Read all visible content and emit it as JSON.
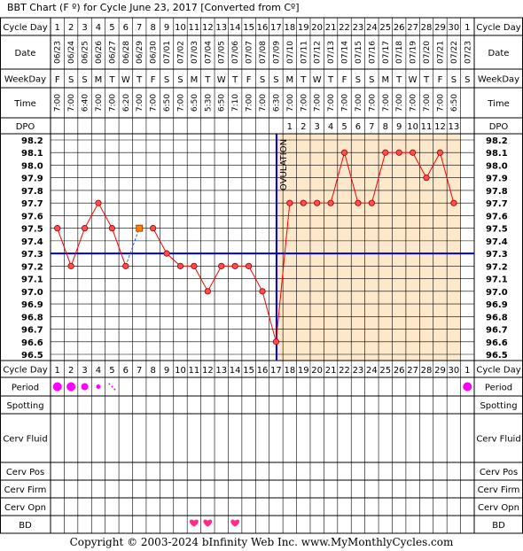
{
  "title": "BBT Chart (F º) for Cycle June 23, 2017  [Converted from Cº]",
  "copyright": "Copyright © 2003-2024 bInfinity Web Inc.    www.MyMonthlyCycles.com",
  "row_labels": {
    "cycle_day": "Cycle Day",
    "date": "Date",
    "weekday": "WeekDay",
    "time": "Time",
    "dpo": "DPO",
    "period": "Period",
    "spotting": "Spotting",
    "cerv_fluid": "Cerv Fluid",
    "cerv_pos": "Cerv Pos",
    "cerv_firm": "Cerv Firm",
    "cerv_opn": "Cerv Opn",
    "bd": "BD"
  },
  "cycle_days": [
    "1",
    "2",
    "3",
    "4",
    "5",
    "6",
    "7",
    "8",
    "9",
    "10",
    "11",
    "12",
    "13",
    "14",
    "15",
    "16",
    "17",
    "18",
    "19",
    "20",
    "21",
    "22",
    "23",
    "24",
    "25",
    "26",
    "27",
    "28",
    "29",
    "30",
    "1"
  ],
  "dates": [
    "06/23",
    "06/24",
    "06/25",
    "06/26",
    "06/27",
    "06/28",
    "06/29",
    "06/30",
    "07/01",
    "07/02",
    "07/03",
    "07/04",
    "07/05",
    "07/06",
    "07/07",
    "07/08",
    "07/09",
    "07/10",
    "07/11",
    "07/12",
    "07/13",
    "07/14",
    "07/15",
    "07/16",
    "07/17",
    "07/18",
    "07/19",
    "07/20",
    "07/21",
    "07/22",
    "07/23"
  ],
  "weekdays": [
    "F",
    "S",
    "S",
    "M",
    "T",
    "W",
    "T",
    "F",
    "S",
    "S",
    "M",
    "T",
    "W",
    "T",
    "F",
    "S",
    "S",
    "M",
    "T",
    "W",
    "T",
    "F",
    "S",
    "S",
    "M",
    "T",
    "W",
    "T",
    "F",
    "S",
    "S"
  ],
  "times": [
    "7:00",
    "7:00",
    "6:40",
    "7:00",
    "7:00",
    "6:20",
    "7:00",
    "7:00",
    "6:50",
    "7:00",
    "6:50",
    "5:30",
    "6:50",
    "7:10",
    "7:00",
    "7:00",
    "6:30",
    "7:00",
    "7:00",
    "7:00",
    "7:00",
    "7:00",
    "7:00",
    "7:00",
    "7:00",
    "7:00",
    "7:00",
    "7:00",
    "7:00",
    "6:50",
    ""
  ],
  "dpo": [
    "",
    "",
    "",
    "",
    "",
    "",
    "",
    "",
    "",
    "",
    "",
    "",
    "",
    "",
    "",
    "",
    "",
    "1",
    "2",
    "3",
    "4",
    "5",
    "6",
    "7",
    "8",
    "9",
    "10",
    "11",
    "12",
    "13",
    ""
  ],
  "temp_scale": [
    "98.2",
    "98.1",
    "98.0",
    "97.9",
    "97.8",
    "97.7",
    "97.6",
    "97.5",
    "97.4",
    "97.3",
    "97.2",
    "97.1",
    "97.0",
    "96.9",
    "96.8",
    "96.7",
    "96.6",
    "96.5"
  ],
  "ovulation_label": "OVULATION",
  "period": [
    "heavy",
    "heavy",
    "medium",
    "light",
    "spotting",
    "",
    "",
    "",
    "",
    "",
    "",
    "",
    "",
    "",
    "",
    "",
    "",
    "",
    "",
    "",
    "",
    "",
    "",
    "",
    "",
    "",
    "",
    "",
    "",
    "",
    "heavy"
  ],
  "bd": [
    "",
    "",
    "",
    "",
    "",
    "",
    "",
    "",
    "",
    "",
    "heart",
    "heart",
    "",
    "heart",
    "",
    "",
    "",
    "",
    "",
    "",
    "",
    "",
    "",
    "",
    "",
    "",
    "",
    "",
    "",
    "",
    ""
  ],
  "colors": {
    "grid": "#000000",
    "luteal_fill": "#fde8cc",
    "temp_line": "#ff0000",
    "temp_point_fill": "#ff4d4d",
    "coverline": "#0000cc",
    "ovulation_line": "#0000cc",
    "period_dot": "#ff00ff",
    "heart": "#ff2a8a",
    "excluded_point": "#ff8000",
    "excluded_line": "#3355ff"
  },
  "chart_data": {
    "type": "line",
    "x": [
      1,
      2,
      3,
      4,
      5,
      6,
      7,
      8,
      9,
      10,
      11,
      12,
      13,
      14,
      15,
      16,
      17,
      18,
      19,
      20,
      21,
      22,
      23,
      24,
      25,
      26,
      27,
      28,
      29,
      30,
      31
    ],
    "series": [
      {
        "values": [
          97.5,
          97.2,
          97.5,
          97.7,
          97.5,
          97.2,
          null,
          97.5,
          97.3,
          97.2,
          97.2,
          97.0,
          97.2,
          97.2,
          97.2,
          97.0,
          96.6,
          97.7,
          97.7,
          97.7,
          97.7,
          98.1,
          97.7,
          97.7,
          98.1,
          98.1,
          98.1,
          97.9,
          98.1,
          97.7,
          null
        ]
      }
    ],
    "excluded_points": [
      {
        "x": 7,
        "y": 97.5
      }
    ],
    "coverline": 97.3,
    "ovulation_day": 17,
    "ylim": [
      96.5,
      98.2
    ],
    "grid": true
  }
}
